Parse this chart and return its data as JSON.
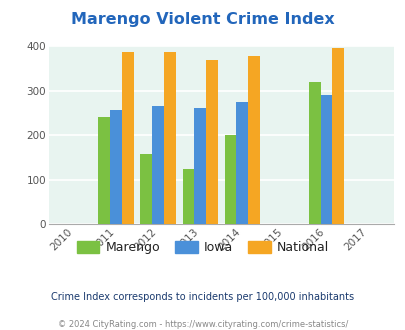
{
  "title": "Marengo Violent Crime Index",
  "title_color": "#2266bb",
  "years": [
    2010,
    2011,
    2012,
    2013,
    2014,
    2015,
    2016,
    2017
  ],
  "data_years": [
    2011,
    2012,
    2013,
    2014,
    2016
  ],
  "marengo": [
    240,
    158,
    125,
    200,
    320
  ],
  "iowa": [
    257,
    265,
    261,
    275,
    291
  ],
  "national": [
    386,
    386,
    368,
    377,
    397
  ],
  "marengo_color": "#7bc142",
  "iowa_color": "#4a90d9",
  "national_color": "#f5a623",
  "bg_color": "#e8f4f0",
  "fig_bg": "#ffffff",
  "footnote1": "Crime Index corresponds to incidents per 100,000 inhabitants",
  "footnote2": "© 2024 CityRating.com - https://www.cityrating.com/crime-statistics/",
  "footnote1_color": "#1a3a6e",
  "footnote2_color": "#888888",
  "ylim": [
    0,
    400
  ],
  "bar_width": 0.28,
  "legend_labels": [
    "Marengo",
    "Iowa",
    "National"
  ]
}
